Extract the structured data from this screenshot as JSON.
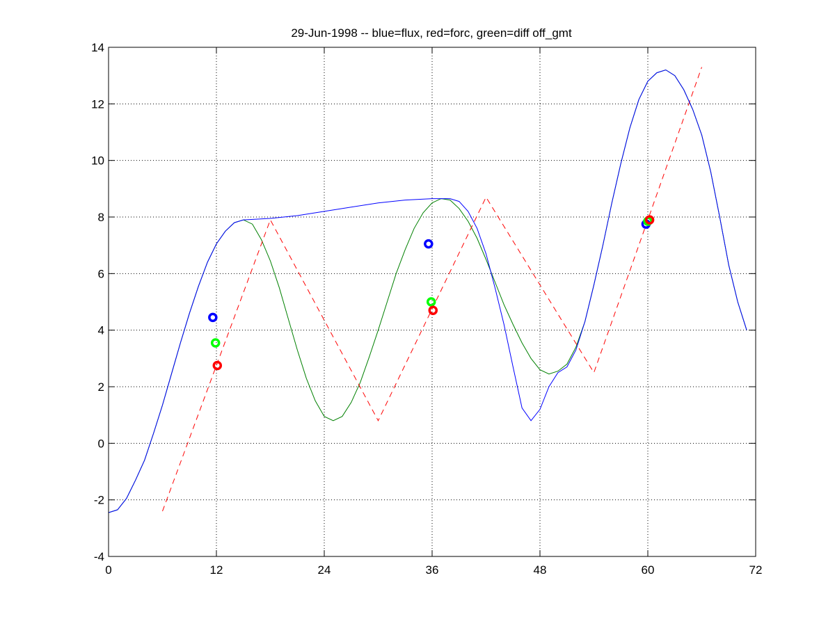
{
  "chart_data": {
    "type": "line",
    "title": "29-Jun-1998 -- blue=flux, red=forc, green=diff off_gmt",
    "xlabel": "",
    "ylabel": "",
    "xlim": [
      0,
      72
    ],
    "ylim": [
      -4,
      14
    ],
    "xticks": [
      0,
      12,
      24,
      36,
      48,
      60,
      72
    ],
    "yticks": [
      -4,
      -2,
      0,
      2,
      4,
      6,
      8,
      10,
      12,
      14
    ],
    "grid": true,
    "series": [
      {
        "color": "#0000ff",
        "style": "solid",
        "x": [
          0,
          1,
          2,
          3,
          4,
          5,
          6,
          7,
          8,
          9,
          10,
          11,
          12,
          13,
          14,
          15,
          18,
          21,
          24,
          27,
          30,
          33,
          36,
          38,
          39,
          40,
          41,
          42,
          43,
          44,
          45,
          46,
          47,
          48,
          49,
          50,
          51,
          52,
          53,
          54,
          55,
          56,
          57,
          58,
          59,
          60,
          61,
          62,
          63,
          64,
          65,
          66,
          67,
          68,
          69,
          70,
          71
        ],
        "y": [
          -2.45,
          -2.35,
          -1.95,
          -1.3,
          -0.6,
          0.35,
          1.35,
          2.45,
          3.55,
          4.6,
          5.55,
          6.4,
          7.05,
          7.5,
          7.8,
          7.9,
          7.95,
          8.05,
          8.2,
          8.35,
          8.5,
          8.6,
          8.65,
          8.65,
          8.55,
          8.2,
          7.6,
          6.7,
          5.5,
          4.2,
          2.7,
          1.25,
          0.8,
          1.2,
          2.0,
          2.5,
          2.7,
          3.3,
          4.3,
          5.6,
          7.0,
          8.5,
          9.9,
          11.15,
          12.15,
          12.8,
          13.1,
          13.2,
          13.0,
          12.5,
          11.8,
          10.9,
          9.6,
          8.0,
          6.3,
          5.0,
          4.0
        ]
      },
      {
        "color": "#008000",
        "style": "solid",
        "x": [
          0,
          1,
          2,
          3,
          4,
          5,
          6,
          7,
          8,
          9,
          10,
          11,
          12,
          13,
          14,
          15,
          16,
          17,
          18,
          19,
          20,
          21,
          22,
          23,
          24,
          25,
          26,
          27,
          28,
          29,
          30,
          31,
          32,
          33,
          34,
          35,
          36,
          37,
          38,
          39,
          40,
          41,
          42,
          43,
          44,
          45,
          46,
          47,
          48,
          49,
          50,
          51,
          52,
          53,
          54,
          55,
          56,
          57,
          58,
          59,
          60,
          61,
          62,
          63,
          64,
          65,
          66,
          67,
          68,
          69,
          70,
          71
        ],
        "y": [
          -2.45,
          -2.35,
          -1.95,
          -1.3,
          -0.6,
          0.35,
          1.35,
          2.45,
          3.55,
          4.6,
          5.55,
          6.4,
          7.05,
          7.5,
          7.8,
          7.9,
          7.75,
          7.2,
          6.45,
          5.5,
          4.4,
          3.3,
          2.3,
          1.5,
          0.95,
          0.8,
          0.95,
          1.45,
          2.15,
          3.05,
          4.0,
          5.0,
          6.0,
          6.85,
          7.6,
          8.15,
          8.5,
          8.65,
          8.6,
          8.3,
          7.85,
          7.25,
          6.5,
          5.7,
          4.9,
          4.2,
          3.55,
          3.0,
          2.6,
          2.45,
          2.55,
          2.8,
          3.4,
          4.3,
          5.6,
          7.0,
          8.5,
          9.9,
          11.15,
          12.15,
          12.8,
          13.1,
          13.2,
          13.0,
          12.5,
          11.8,
          10.9,
          9.6,
          8.0,
          6.3,
          5.0,
          4.0
        ]
      },
      {
        "color": "#ff0000",
        "style": "dashed",
        "x": [
          6,
          18,
          30,
          42,
          54,
          66
        ],
        "y": [
          -2.4,
          7.9,
          0.8,
          8.7,
          2.5,
          13.3
        ]
      }
    ],
    "markers": [
      {
        "color": "#0000ff",
        "x": [
          11.6,
          35.6,
          59.8
        ],
        "y": [
          4.45,
          7.05,
          7.75
        ]
      },
      {
        "color": "#00ff00",
        "x": [
          11.9,
          35.9,
          60.0
        ],
        "y": [
          3.55,
          5.0,
          7.85
        ]
      },
      {
        "color": "#ff0000",
        "x": [
          12.1,
          36.1,
          60.2
        ],
        "y": [
          2.75,
          4.7,
          7.9
        ]
      }
    ]
  }
}
